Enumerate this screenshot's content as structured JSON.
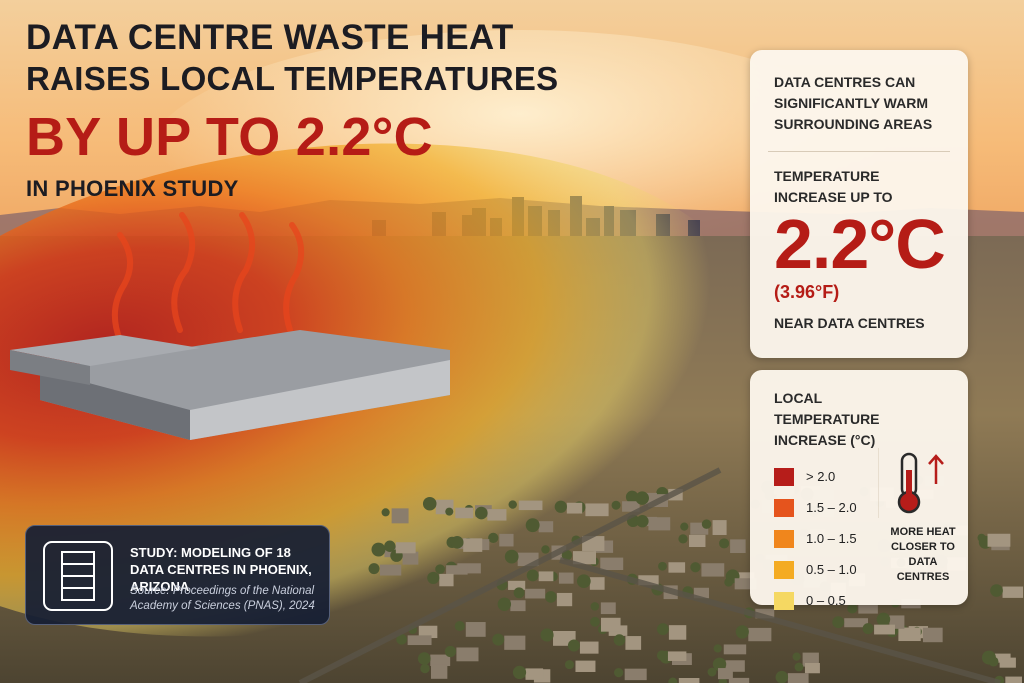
{
  "headline": {
    "line1": "DATA CENTRE WASTE HEAT",
    "line2": "RAISES LOCAL TEMPERATURES",
    "highlight": "BY UP TO 2.2°C",
    "subtitle": "IN PHOENIX STUDY"
  },
  "summary_card": {
    "intro": "DATA CENTRES CAN SIGNIFICANTLY WARM SURROUNDING AREAS",
    "label": "TEMPERATURE INCREASE UP TO",
    "value": "2.2°C",
    "value_fahrenheit": "(3.96°F)",
    "note": "NEAR DATA CENTRES"
  },
  "legend": {
    "title": "LOCAL TEMPERATURE INCREASE (°C)",
    "items": [
      {
        "label": "> 2.0",
        "color": "#b61d1a"
      },
      {
        "label": "1.5 – 2.0",
        "color": "#e5541d"
      },
      {
        "label": "1.0 – 1.5",
        "color": "#f0861c"
      },
      {
        "label": "0.5 – 1.0",
        "color": "#f4ab22"
      },
      {
        "label": "0 – 0.5",
        "color": "#f5d862"
      }
    ],
    "note": "MORE HEAT CLOSER TO DATA CENTRES"
  },
  "study": {
    "title": "STUDY: MODELING OF 18 DATA CENTRES IN PHOENIX, ARIZONA",
    "source": "Source: Proceedings of the National Academy of Sciences (PNAS), 2024"
  }
}
